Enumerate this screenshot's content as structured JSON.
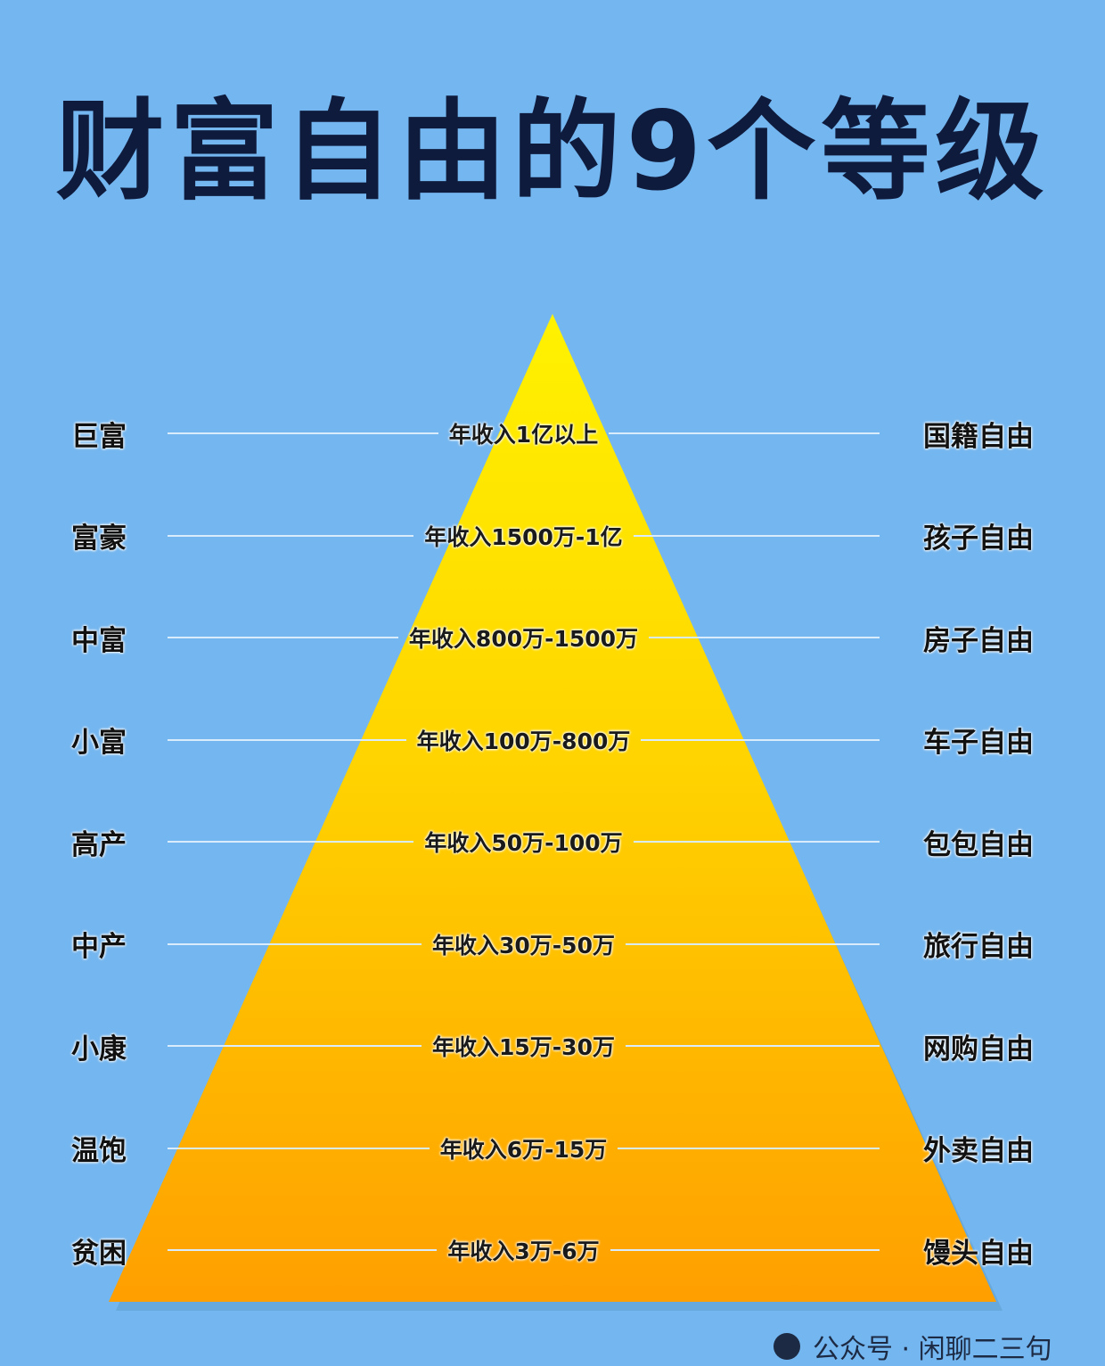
{
  "title": "财富自由的9个等级",
  "colors": {
    "background": "#74b6ef",
    "pyramid_top": "#fff200",
    "pyramid_bottom": "#ff9f00",
    "title": "#0f1b3d"
  },
  "levels": [
    {
      "level": "巨富",
      "income": "年收入1亿以上",
      "freedom": "国籍自由"
    },
    {
      "level": "富豪",
      "income": "年收入1500万-1亿",
      "freedom": "孩子自由"
    },
    {
      "level": "中富",
      "income": "年收入800万-1500万",
      "freedom": "房子自由"
    },
    {
      "level": "小富",
      "income": "年收入100万-800万",
      "freedom": "车子自由"
    },
    {
      "level": "高产",
      "income": "年收入50万-100万",
      "freedom": "包包自由"
    },
    {
      "level": "中产",
      "income": "年收入30万-50万",
      "freedom": "旅行自由"
    },
    {
      "level": "小康",
      "income": "年收入15万-30万",
      "freedom": "网购自由"
    },
    {
      "level": "温饱",
      "income": "年收入6万-15万",
      "freedom": "外卖自由"
    },
    {
      "level": "贫困",
      "income": "年收入3万-6万",
      "freedom": "馒头自由"
    }
  ],
  "watermark": {
    "icon": "wechat-official-account-icon",
    "text": "公众号 · 闲聊二三句"
  }
}
